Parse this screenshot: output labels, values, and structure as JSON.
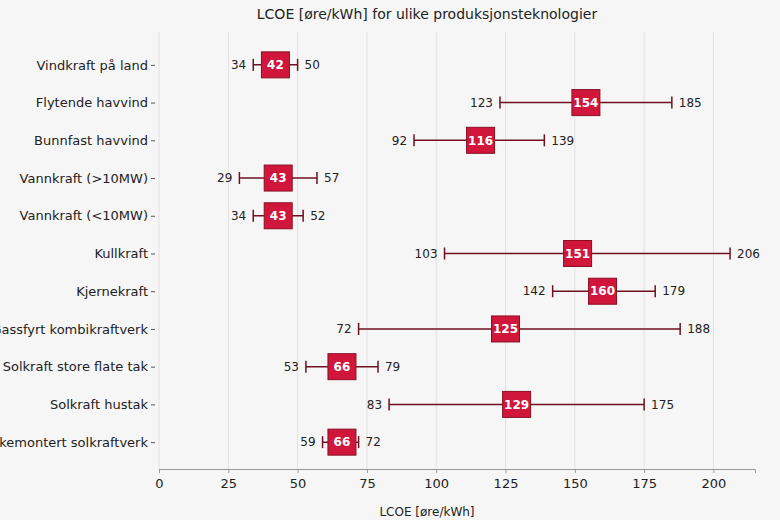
{
  "chart_data": {
    "type": "range",
    "title": "LCOE [øre/kWh] for ulike produksjonsteknologier",
    "x_label": "LCOE [øre/kWh]",
    "orientation": "horizontal",
    "categories": [
      "Vindkraft på land",
      "Flytende havvind",
      "Bunnfast havvind",
      "Vannkraft (>10MW)",
      "Vannkraft (<10MW)",
      "Kullkraft",
      "Kjernekraft",
      "Gassfyrt kombikraftverk",
      "Solkraft store flate tak",
      "Solkraft hustak",
      "Bakkemontert solkraftverk"
    ],
    "values": [
      42,
      154,
      116,
      43,
      43,
      151,
      160,
      125,
      66,
      129,
      66
    ],
    "low": [
      34,
      123,
      92,
      29,
      34,
      103,
      142,
      72,
      53,
      83,
      59
    ],
    "high": [
      50,
      185,
      139,
      57,
      52,
      206,
      179,
      188,
      79,
      175,
      72
    ],
    "color": "#d0173b",
    "xlim": [
      0,
      215
    ],
    "xticks": [
      0,
      25,
      50,
      75,
      100,
      125,
      150,
      175,
      200
    ],
    "grid": true,
    "data_labels": true
  }
}
